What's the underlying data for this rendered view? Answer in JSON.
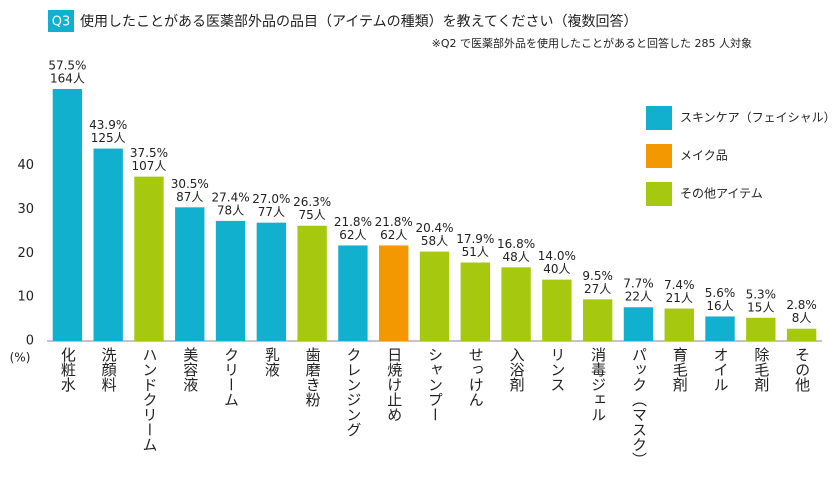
{
  "chart_data": {
    "type": "bar",
    "badge": "Q3",
    "title": "使用したことがある医薬部外品の品目（アイテムの種類）を教えてください（複数回答）",
    "subtitle": "※Q2 で医薬部外品を使用したことがあると回答した 285 人対象",
    "y_label": "(%)",
    "categories": [
      "化粧水",
      "洗顔料",
      "ハンドクリーム",
      "美容液",
      "クリーム",
      "乳液",
      "歯磨き粉",
      "クレンジング",
      "日焼け止め",
      "シャンプー",
      "せっけん",
      "入浴剤",
      "リンス",
      "消毒ジェル",
      "パック（マスク）",
      "育毛剤",
      "オイル",
      "除毛剤",
      "その他"
    ],
    "series": [
      {
        "name": "スキンケア（フェイシャル）",
        "color": "#12b0cf",
        "values": [
          57.5,
          43.9,
          null,
          30.5,
          27.4,
          27.0,
          null,
          21.8,
          null,
          null,
          null,
          null,
          null,
          null,
          7.7,
          null,
          5.6,
          null,
          null
        ],
        "value_labels": [
          "57.5%",
          "43.9%",
          null,
          "30.5%",
          "27.4%",
          "27.0%",
          null,
          "21.8%",
          null,
          null,
          null,
          null,
          null,
          null,
          "7.7%",
          null,
          "5.6%",
          null,
          null
        ],
        "count_labels": [
          "164人",
          "125人",
          null,
          "87人",
          "78人",
          "77人",
          null,
          "62人",
          null,
          null,
          null,
          null,
          null,
          null,
          "22人",
          null,
          "16人",
          null,
          null
        ]
      },
      {
        "name": "メイク品",
        "color": "#f39800",
        "values": [
          null,
          null,
          null,
          null,
          null,
          null,
          null,
          null,
          21.8,
          null,
          null,
          null,
          null,
          null,
          null,
          null,
          null,
          null,
          null
        ],
        "value_labels": [
          null,
          null,
          null,
          null,
          null,
          null,
          null,
          null,
          "21.8%",
          null,
          null,
          null,
          null,
          null,
          null,
          null,
          null,
          null,
          null
        ],
        "count_labels": [
          null,
          null,
          null,
          null,
          null,
          null,
          null,
          null,
          "62人",
          null,
          null,
          null,
          null,
          null,
          null,
          null,
          null,
          null,
          null
        ]
      },
      {
        "name": "その他アイテム",
        "color": "#a6c80f",
        "values": [
          null,
          null,
          37.5,
          null,
          null,
          null,
          26.3,
          null,
          null,
          20.4,
          17.9,
          16.8,
          14.0,
          9.5,
          null,
          7.4,
          null,
          5.3,
          2.8
        ],
        "value_labels": [
          null,
          null,
          "37.5%",
          null,
          null,
          null,
          "26.3%",
          null,
          null,
          "20.4%",
          "17.9%",
          "16.8%",
          "14.0%",
          "9.5%",
          null,
          "7.4%",
          null,
          "5.3%",
          "2.8%"
        ],
        "count_labels": [
          null,
          null,
          "107人",
          null,
          null,
          null,
          "75人",
          null,
          null,
          "58人",
          "51人",
          "48人",
          "40人",
          "27人",
          null,
          "21人",
          null,
          "15人",
          "8人"
        ]
      }
    ],
    "ylim": [
      0,
      60
    ],
    "yticks": [
      0,
      10,
      20,
      30,
      40
    ],
    "grid": false
  }
}
